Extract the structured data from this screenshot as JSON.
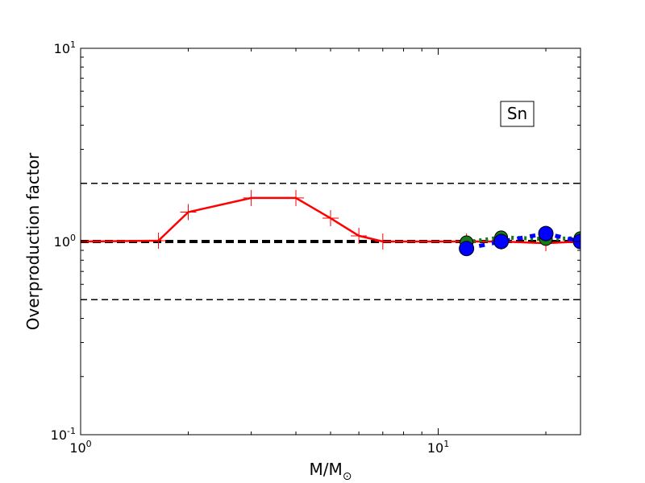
{
  "chart_data": {
    "type": "line",
    "xscale": "log",
    "yscale": "log",
    "xlim": [
      1,
      25
    ],
    "ylim": [
      0.1,
      10
    ],
    "xlabel": "M/M",
    "xlabel_sub": "⊙",
    "ylabel": "Overproduction factor",
    "annotation": "Sn",
    "x_ticks": [
      {
        "value": 1,
        "base": "10",
        "exp": "0"
      },
      {
        "value": 10,
        "base": "10",
        "exp": "1"
      }
    ],
    "y_ticks": [
      {
        "value": 0.1,
        "base": "10",
        "exp": "-1"
      },
      {
        "value": 1,
        "base": "10",
        "exp": "0"
      },
      {
        "value": 10,
        "base": "10",
        "exp": "1"
      }
    ],
    "reference_lines": [
      {
        "y": 2.0,
        "style": "dashed",
        "color": "#000000",
        "width": 1.5
      },
      {
        "y": 1.0,
        "style": "dashed",
        "color": "#000000",
        "width": 4
      },
      {
        "y": 0.5,
        "style": "dashed",
        "color": "#000000",
        "width": 1.5
      }
    ],
    "series": [
      {
        "color": "#ff0000",
        "style": "solid",
        "marker": "plus",
        "x": [
          1.0,
          1.65,
          2.0,
          3.0,
          4.0,
          5.0,
          6.0,
          7.0,
          12.0,
          15.0,
          20.0,
          25.0
        ],
        "y": [
          1.0,
          1.01,
          1.42,
          1.68,
          1.68,
          1.32,
          1.07,
          1.0,
          1.0,
          1.0,
          0.98,
          1.0
        ]
      },
      {
        "color": "#1a7a1a",
        "style": "dotted",
        "marker": "circle",
        "x": [
          12.0,
          15.0,
          20.0,
          25.0
        ],
        "y": [
          0.99,
          1.05,
          1.03,
          1.04
        ]
      },
      {
        "color": "#0000ff",
        "style": "dashed",
        "marker": "circle",
        "x": [
          12.0,
          15.0,
          20.0,
          25.0
        ],
        "y": [
          0.92,
          1.0,
          1.1,
          1.0
        ]
      }
    ]
  }
}
